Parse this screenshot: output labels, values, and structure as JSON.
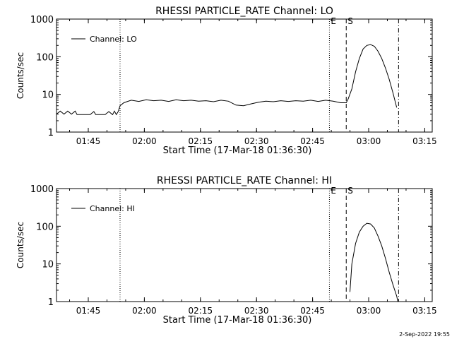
{
  "chart_data": [
    {
      "type": "line",
      "title": "RHESSI PARTICLE_RATE Channel: LO",
      "xlabel": "Start Time (17-Mar-18 01:36:30)",
      "ylabel": "Counts/sec",
      "y_scale": "log",
      "ylim": [
        1,
        1000
      ],
      "x_unit": "minutes after 01:36:30",
      "xlim": [
        0,
        100.5
      ],
      "x_tick_labels": [
        "01:45",
        "02:00",
        "02:15",
        "02:30",
        "02:45",
        "03:00",
        "03:15"
      ],
      "x_tick_values": [
        8.5,
        23.5,
        38.5,
        53.5,
        68.5,
        83.5,
        98.5
      ],
      "y_tick_labels": [
        "1",
        "10",
        "100",
        "1000"
      ],
      "y_tick_values": [
        1,
        10,
        100,
        1000
      ],
      "grid": false,
      "legend": "top-left",
      "event_markers": [
        {
          "label": "",
          "x": 17.0,
          "style": "dotted"
        },
        {
          "label": "E",
          "x": 73.0,
          "style": "dotted"
        },
        {
          "label": "S",
          "x": 77.5,
          "style": "dashed"
        },
        {
          "label": "",
          "x": 91.5,
          "style": "dash-dot"
        }
      ],
      "series": [
        {
          "name": "Channel: LO",
          "x": [
            0,
            1,
            2,
            3,
            4,
            5,
            5.5,
            7,
            9,
            10,
            10.5,
            11,
            12,
            13,
            14,
            15,
            15.5,
            16,
            16.5,
            17,
            18,
            19,
            20,
            22,
            24,
            26,
            28,
            30,
            32,
            34,
            36,
            38,
            40,
            42,
            44,
            46,
            48,
            50,
            52,
            54,
            56,
            58,
            60,
            62,
            64,
            66,
            68,
            70,
            72,
            74,
            76,
            77.5,
            78,
            79,
            80,
            81,
            82,
            83,
            84,
            85,
            86,
            87,
            88,
            89,
            90,
            91
          ],
          "values": [
            3,
            3.6,
            3.0,
            3.6,
            3.0,
            3.6,
            2.9,
            2.9,
            2.9,
            3.5,
            2.9,
            2.9,
            2.9,
            2.9,
            3.5,
            2.9,
            3.6,
            2.9,
            3.5,
            5.0,
            6.0,
            6.5,
            7.0,
            6.5,
            7.2,
            6.8,
            7.0,
            6.5,
            7.2,
            6.8,
            7.0,
            6.6,
            6.8,
            6.4,
            7.0,
            6.6,
            5.2,
            5.0,
            5.6,
            6.2,
            6.6,
            6.4,
            6.8,
            6.5,
            6.8,
            6.6,
            7.0,
            6.5,
            7.0,
            6.6,
            6.0,
            6.0,
            7.5,
            14,
            40,
            90,
            160,
            200,
            210,
            190,
            140,
            90,
            50,
            25,
            11,
            4.5
          ]
        }
      ]
    },
    {
      "type": "line",
      "title": "RHESSI PARTICLE_RATE Channel: HI",
      "xlabel": "Start Time (17-Mar-18 01:36:30)",
      "ylabel": "Counts/sec",
      "y_scale": "log",
      "ylim": [
        1,
        1000
      ],
      "x_unit": "minutes after 01:36:30",
      "xlim": [
        0,
        100.5
      ],
      "x_tick_labels": [
        "01:45",
        "02:00",
        "02:15",
        "02:30",
        "02:45",
        "03:00",
        "03:15"
      ],
      "x_tick_values": [
        8.5,
        23.5,
        38.5,
        53.5,
        68.5,
        83.5,
        98.5
      ],
      "y_tick_labels": [
        "1",
        "10",
        "100",
        "1000"
      ],
      "y_tick_values": [
        1,
        10,
        100,
        1000
      ],
      "grid": false,
      "legend": "top-left",
      "event_markers": [
        {
          "label": "",
          "x": 17.0,
          "style": "dotted"
        },
        {
          "label": "E",
          "x": 73.0,
          "style": "dotted"
        },
        {
          "label": "S",
          "x": 77.5,
          "style": "dashed"
        },
        {
          "label": "",
          "x": 91.5,
          "style": "dash-dot"
        }
      ],
      "series": [
        {
          "name": "Channel: HI",
          "x": [
            78.5,
            79,
            80,
            81,
            82,
            83,
            84,
            85,
            86,
            87,
            88,
            89,
            90,
            91,
            91.3
          ],
          "values": [
            1.8,
            10,
            35,
            70,
            100,
            120,
            115,
            90,
            55,
            30,
            14,
            6,
            2.8,
            1.4,
            1.0
          ]
        }
      ]
    }
  ],
  "footer": {
    "timestamp": "2-Sep-2022 19:55"
  }
}
